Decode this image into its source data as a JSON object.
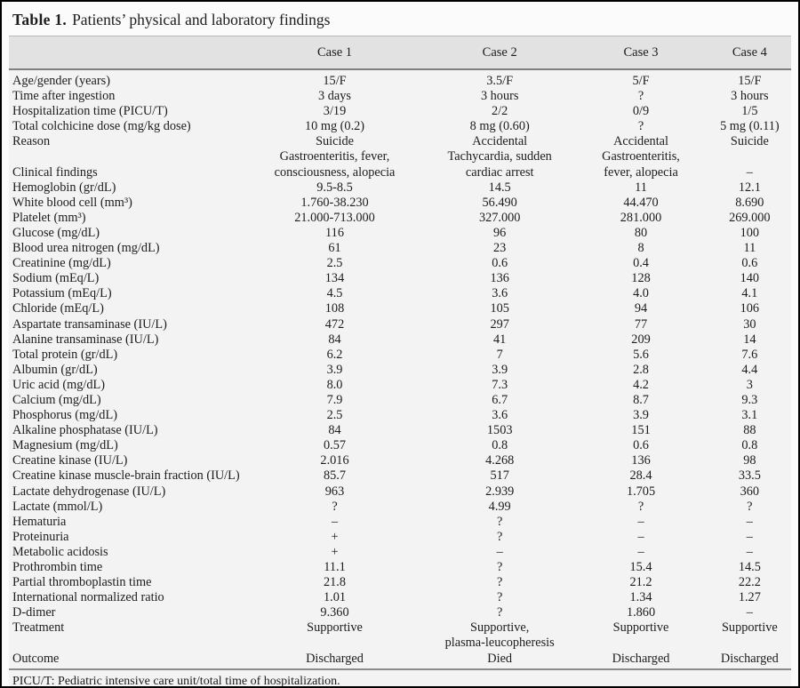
{
  "title": {
    "label": "Table 1.",
    "caption": "Patients’ physical and laboratory findings"
  },
  "columns": [
    "Case 1",
    "Case 2",
    "Case 3",
    "Case 4"
  ],
  "rows": [
    {
      "label": "Age/gender (years)",
      "values": [
        "15/F",
        "3.5/F",
        "5/F",
        "15/F"
      ]
    },
    {
      "label": "Time after ingestion",
      "values": [
        "3 days",
        "3 hours",
        "?",
        "3 hours"
      ]
    },
    {
      "label": "Hospitalization time (PICU/T)",
      "values": [
        "3/19",
        "2/2",
        "0/9",
        "1/5"
      ]
    },
    {
      "label": "Total colchicine dose (mg/kg dose)",
      "values": [
        "10 mg (0.2)",
        "8 mg (0.60)",
        "?",
        "5 mg (0.11)"
      ]
    },
    {
      "label": "Reason",
      "values": [
        "Suicide",
        "Accidental",
        "Accidental",
        "Suicide"
      ]
    },
    {
      "label": "Clinical findings",
      "values": [
        "Gastroenteritis, fever,\nconsciousness, alopecia",
        "Tachycardia, sudden\ncardiac arrest",
        "Gastroenteritis,\nfever, alopecia",
        "–"
      ]
    },
    {
      "label": "Hemoglobin (gr/dL)",
      "values": [
        "9.5-8.5",
        "14.5",
        "11",
        "12.1"
      ]
    },
    {
      "label": "White blood cell (mm³)",
      "values": [
        "1.760-38.230",
        "56.490",
        "44.470",
        "8.690"
      ]
    },
    {
      "label": "Platelet (mm³)",
      "values": [
        "21.000-713.000",
        "327.000",
        "281.000",
        "269.000"
      ]
    },
    {
      "label": "Glucose (mg/dL)",
      "values": [
        "116",
        "96",
        "80",
        "100"
      ]
    },
    {
      "label": "Blood urea nitrogen (mg/dL)",
      "values": [
        "61",
        "23",
        "8",
        "11"
      ]
    },
    {
      "label": "Creatinine (mg/dL)",
      "values": [
        "2.5",
        "0.6",
        "0.4",
        "0.6"
      ]
    },
    {
      "label": "Sodium (mEq/L)",
      "values": [
        "134",
        "136",
        "128",
        "140"
      ]
    },
    {
      "label": "Potassium (mEq/L)",
      "values": [
        "4.5",
        "3.6",
        "4.0",
        "4.1"
      ]
    },
    {
      "label": "Chloride (mEq/L)",
      "values": [
        "108",
        "105",
        "94",
        "106"
      ]
    },
    {
      "label": "Aspartate transaminase (IU/L)",
      "values": [
        "472",
        "297",
        "77",
        "30"
      ]
    },
    {
      "label": "Alanine transaminase (IU/L)",
      "values": [
        "84",
        "41",
        "209",
        "14"
      ]
    },
    {
      "label": "Total protein (gr/dL)",
      "values": [
        "6.2",
        "7",
        "5.6",
        "7.6"
      ]
    },
    {
      "label": "Albumin (gr/dL)",
      "values": [
        "3.9",
        "3.9",
        "2.8",
        "4.4"
      ]
    },
    {
      "label": "Uric acid (mg/dL)",
      "values": [
        "8.0",
        "7.3",
        "4.2",
        "3"
      ]
    },
    {
      "label": "Calcium (mg/dL)",
      "values": [
        "7.9",
        "6.7",
        "8.7",
        "9.3"
      ]
    },
    {
      "label": "Phosphorus (mg/dL)",
      "values": [
        "2.5",
        "3.6",
        "3.9",
        "3.1"
      ]
    },
    {
      "label": "Alkaline phosphatase (IU/L)",
      "values": [
        "84",
        "1503",
        "151",
        "88"
      ]
    },
    {
      "label": "Magnesium (mg/dL)",
      "values": [
        "0.57",
        "0.8",
        "0.6",
        "0.8"
      ]
    },
    {
      "label": "Creatine kinase (IU/L)",
      "values": [
        "2.016",
        "4.268",
        "136",
        "98"
      ]
    },
    {
      "label": "Creatine kinase muscle-brain fraction (IU/L)",
      "values": [
        "85.7",
        "517",
        "28.4",
        "33.5"
      ]
    },
    {
      "label": "Lactate dehydrogenase (IU/L)",
      "values": [
        "963",
        "2.939",
        "1.705",
        "360"
      ]
    },
    {
      "label": "Lactate (mmol/L)",
      "values": [
        "?",
        "4.99",
        "?",
        "?"
      ]
    },
    {
      "label": "Hematuria",
      "values": [
        "–",
        "?",
        "–",
        "–"
      ]
    },
    {
      "label": "Proteinuria",
      "values": [
        "+",
        "?",
        "–",
        "–"
      ]
    },
    {
      "label": "Metabolic acidosis",
      "values": [
        "+",
        "–",
        "–",
        "–"
      ]
    },
    {
      "label": "Prothrombin time",
      "values": [
        "11.1",
        "?",
        "15.4",
        "14.5"
      ]
    },
    {
      "label": "Partial thromboplastin time",
      "values": [
        "21.8",
        "?",
        "21.2",
        "22.2"
      ]
    },
    {
      "label": "International normalized ratio",
      "values": [
        "1.01",
        "?",
        "1.34",
        "1.27"
      ]
    },
    {
      "label": "D-dimer",
      "values": [
        "9.360",
        "?",
        "1.860",
        "–"
      ]
    },
    {
      "label": "Treatment",
      "values": [
        "Supportive",
        "Supportive,\nplasma-leucopheresis",
        "Supportive",
        "Supportive"
      ]
    },
    {
      "label": "Outcome",
      "values": [
        "Discharged",
        "Died",
        "Discharged",
        "Discharged"
      ]
    }
  ],
  "footnote": "PICU/T: Pediatric intensive care unit/total time of hospitalization.",
  "colors": {
    "header_band": "#e2e2e2",
    "frame_border": "#000000",
    "body_background": "#f3f3f3"
  }
}
